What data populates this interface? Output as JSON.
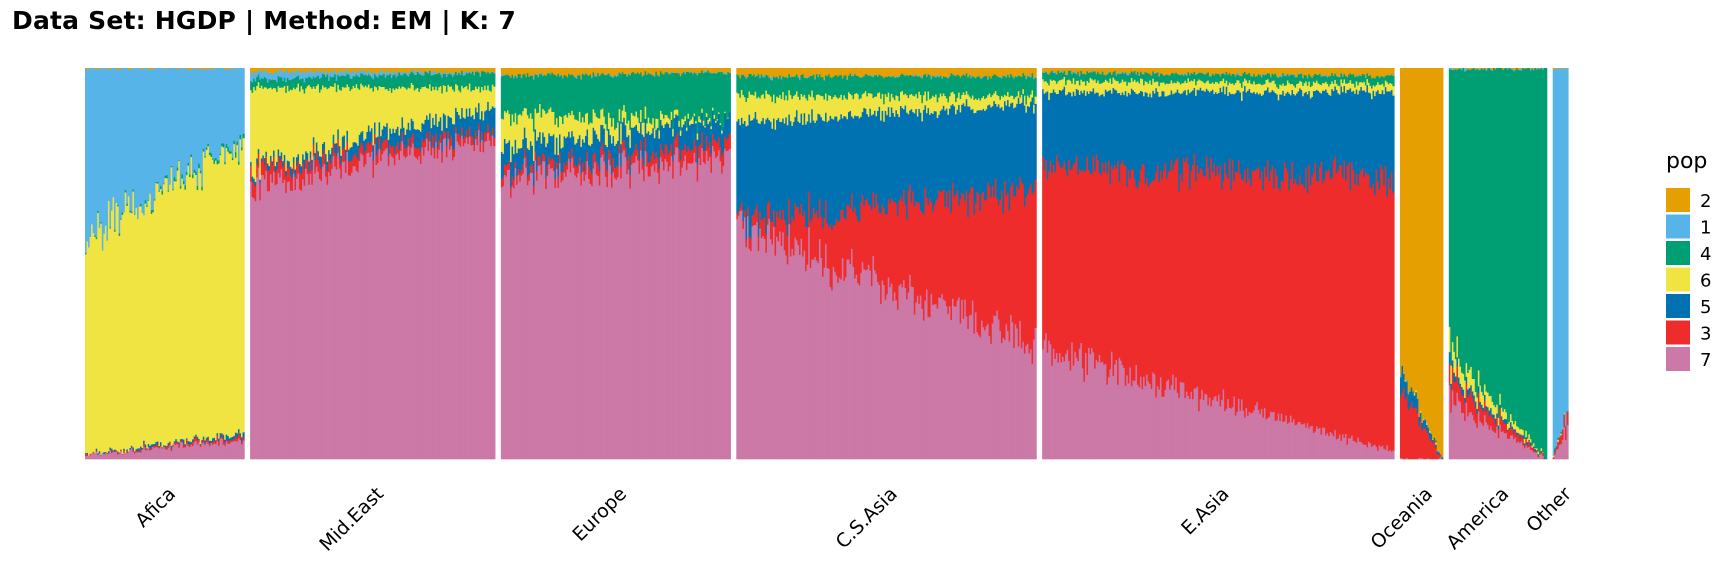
{
  "title": "Data Set: HGDP | Method: EM | K: 7",
  "chart_data": {
    "type": "bar",
    "stacked": true,
    "ylim": [
      0,
      1
    ],
    "grid": false,
    "legend_title": "pop",
    "legend_placement": "right",
    "series_order_bottom_to_top": [
      "7",
      "3",
      "5",
      "6",
      "4",
      "1",
      "2"
    ],
    "legend": [
      {
        "name": "2",
        "color": "#E69F00"
      },
      {
        "name": "1",
        "color": "#56B4E9"
      },
      {
        "name": "4",
        "color": "#009E73"
      },
      {
        "name": "6",
        "color": "#F0E442"
      },
      {
        "name": "5",
        "color": "#0072B2"
      },
      {
        "name": "3",
        "color": "#EE2C2C"
      },
      {
        "name": "7",
        "color": "#CC79A7"
      }
    ],
    "groups": [
      {
        "label": "Afica",
        "n": 104,
        "start": {
          "7": 0.01,
          "3": 0.0,
          "5": 0.0,
          "6": 0.56,
          "4": 0.0,
          "1": 0.43,
          "2": 0.0
        },
        "end": {
          "7": 0.05,
          "3": 0.01,
          "5": 0.01,
          "6": 0.73,
          "4": 0.01,
          "1": 0.19,
          "2": 0.0
        }
      },
      {
        "label": "Mid.East",
        "n": 160,
        "start": {
          "7": 0.7,
          "3": 0.04,
          "5": 0.01,
          "6": 0.2,
          "4": 0.02,
          "1": 0.02,
          "2": 0.01
        },
        "end": {
          "7": 0.82,
          "3": 0.02,
          "5": 0.06,
          "6": 0.05,
          "4": 0.04,
          "1": 0.0,
          "2": 0.01
        }
      },
      {
        "label": "Europe",
        "n": 150,
        "start": {
          "7": 0.72,
          "3": 0.02,
          "5": 0.06,
          "6": 0.08,
          "4": 0.1,
          "1": 0.0,
          "2": 0.02
        },
        "end": {
          "7": 0.77,
          "3": 0.04,
          "5": 0.06,
          "6": 0.0,
          "4": 0.12,
          "1": 0.0,
          "2": 0.01
        }
      },
      {
        "label": "C.S.Asia",
        "n": 196,
        "start": {
          "7": 0.6,
          "3": 0.01,
          "5": 0.25,
          "6": 0.07,
          "4": 0.05,
          "1": 0.0,
          "2": 0.02
        },
        "end": {
          "7": 0.29,
          "3": 0.4,
          "5": 0.22,
          "6": 0.02,
          "4": 0.05,
          "1": 0.0,
          "2": 0.02
        }
      },
      {
        "label": "E.Asia",
        "n": 230,
        "start": {
          "7": 0.28,
          "3": 0.47,
          "5": 0.19,
          "6": 0.03,
          "4": 0.02,
          "1": 0.0,
          "2": 0.01
        },
        "end": {
          "7": 0.02,
          "3": 0.7,
          "5": 0.22,
          "6": 0.02,
          "4": 0.02,
          "1": 0.0,
          "2": 0.02
        }
      },
      {
        "label": "Oceania",
        "n": 28,
        "start": {
          "7": 0.0,
          "3": 0.18,
          "5": 0.05,
          "6": 0.0,
          "4": 0.0,
          "1": 0.0,
          "2": 0.77
        },
        "end": {
          "7": 0.0,
          "3": 0.0,
          "5": 0.0,
          "6": 0.0,
          "4": 0.0,
          "1": 0.0,
          "2": 1.0
        }
      },
      {
        "label": "America",
        "n": 64,
        "start": {
          "7": 0.15,
          "3": 0.06,
          "5": 0.02,
          "6": 0.05,
          "4": 0.72,
          "1": 0.0,
          "2": 0.0
        },
        "end": {
          "7": 0.0,
          "3": 0.0,
          "5": 0.0,
          "6": 0.0,
          "4": 1.0,
          "1": 0.0,
          "2": 0.0
        }
      },
      {
        "label": "Other",
        "n": 10,
        "start": {
          "7": 0.0,
          "3": 0.0,
          "5": 0.0,
          "6": 0.0,
          "4": 0.0,
          "1": 1.0,
          "2": 0.0
        },
        "end": {
          "7": 0.08,
          "3": 0.04,
          "5": 0.0,
          "6": 0.0,
          "4": 0.0,
          "1": 0.88,
          "2": 0.0
        }
      }
    ]
  }
}
